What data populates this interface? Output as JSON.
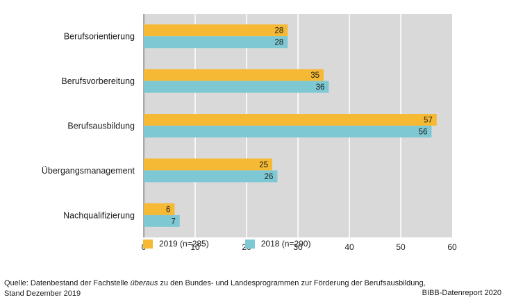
{
  "chart_data": {
    "type": "bar",
    "orientation": "horizontal",
    "categories": [
      "Berufsorientierung",
      "Berufsvorbereitung",
      "Berufsausbildung",
      "Übergangsmanagement",
      "Nachqualifizierung"
    ],
    "series": [
      {
        "name": "2019 (n=285)",
        "values": [
          28,
          35,
          57,
          25,
          6
        ],
        "color": "#f6b934"
      },
      {
        "name": "2018 (n=290)",
        "values": [
          28,
          36,
          56,
          26,
          7
        ],
        "color": "#7ec8d3"
      }
    ],
    "xlim": [
      0,
      60
    ],
    "ticks": [
      0,
      10,
      20,
      30,
      40,
      50,
      60
    ],
    "grid": true,
    "plot_background": "#d9d9da",
    "legend_position": "bottom"
  },
  "source": {
    "prefix": "Quelle: Datenbestand der Fachstelle ",
    "emphasis": "überaus",
    "suffix": " zu den Bundes- und Landesprogrammen zur Förderung der Berufsausbildung,",
    "line2": "Stand Dezember 2019"
  },
  "credit": "BIBB-Datenreport 2020"
}
